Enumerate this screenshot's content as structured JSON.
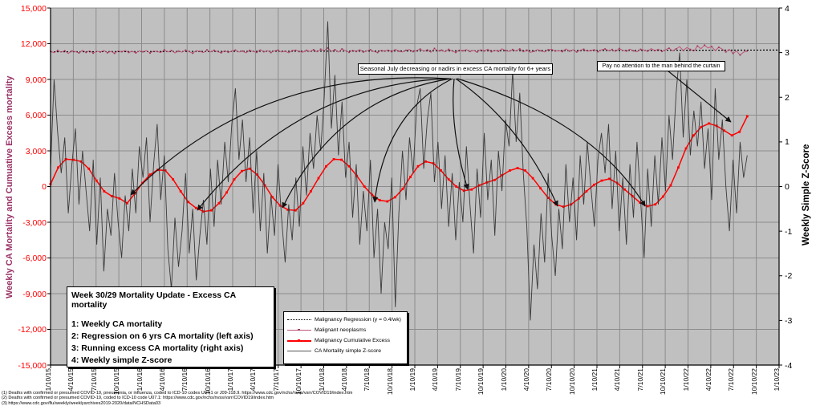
{
  "info_box": {
    "title": "Week 30/29 Mortality Update - Excess CA mortality",
    "lines": [
      "1: Weekly CA mortality",
      "2: Regression on 6 yrs CA mortality (left axis)",
      "3: Running excess CA mortality (right axis)",
      "4: Weekly simple Z-score"
    ]
  },
  "legend": {
    "items": [
      {
        "label": "Malignancy Regression (y = 0.4/wk)",
        "marker": "dotted-black-line"
      },
      {
        "label": "Malignant neoplasms",
        "marker": "pink-line-dot"
      },
      {
        "label": "Malignancy Cumulative Excess",
        "marker": "red-line-square"
      },
      {
        "label": "CA Mortality simple Z-score",
        "marker": "thin-black-line"
      }
    ]
  },
  "annotations": {
    "seasonal": {
      "text": "Seasonal July decreasing or nadirs in excess CA mortality for 6+ years"
    },
    "curtain": {
      "text": "Pay no attention to the man behind the curtain"
    }
  },
  "footnotes": [
    "(1) Deaths with confirmed or presumed COVID-19, pneumonia, or influenza, coded to ICD-10 codes U07.1 or J09-J18.9.  https://www.cdc.gov/nchs/nvss/vsrr/COVID19/index.htm",
    "(2) Deaths with confirmed or presumed COVID-19, coded to ICD-10 code U07.1:  https://www.cdc.gov/nchs/nvss/vsrr/COVID19/index.htm",
    "(3) https://www.cdc.gov/flu/weekly/weeklyarchives2019-2020/data/NCHSData03"
  ],
  "colors": {
    "plot_bg": "#C0C0C0",
    "grid": "#8C8C8C",
    "left_tick_labels": "#FF0000",
    "left_axis_title": "#993366",
    "neoplasms_line": "#BE5677",
    "neoplasms_marker": "#9E3D60",
    "cumulative_line": "#FF0000",
    "zscore_line": "#3A3A3A",
    "regression_line": "#000000",
    "arrow": "#111111"
  },
  "chart_data": {
    "type": "line",
    "title": "",
    "x_tick_labels": [
      "1/10/15",
      "4/10/15",
      "7/10/15",
      "10/10/15",
      "1/10/16",
      "4/10/16",
      "7/10/16",
      "10/10/16",
      "1/10/17",
      "4/10/17",
      "7/10/17",
      "10/10/17",
      "1/10/18",
      "4/10/18",
      "7/10/18",
      "10/10/18",
      "1/10/19",
      "4/10/19",
      "7/10/19",
      "10/10/19",
      "1/10/20",
      "4/10/20",
      "7/10/20",
      "10/10/20",
      "1/10/21",
      "4/10/21",
      "7/10/21",
      "10/10/21",
      "1/10/22",
      "4/10/22",
      "7/10/22",
      "10/10/22",
      "1/10/23"
    ],
    "left_axis": {
      "title": "Weekly CA Mortality and Cumuative Excess mortality",
      "min": -15000,
      "max": 15000,
      "tick_step": 3000,
      "tick_labels": [
        "15,000",
        "12,000",
        "9,000",
        "6,000",
        "3,000",
        "0",
        "-3,000",
        "-6,000",
        "-9,000",
        "-12,000",
        "-15,000"
      ]
    },
    "right_axis": {
      "title": "Weekly Simple Z-Score",
      "min": -4,
      "max": 4,
      "tick_step": 1,
      "tick_labels": [
        "4",
        "3",
        "2",
        "1",
        "0",
        "-1",
        "-2",
        "-3",
        "-4"
      ]
    },
    "grid": true,
    "legend_position": "in-plot lower-center",
    "series": [
      {
        "name": "Malignancy Regression (y = 0.4/wk)",
        "axis": "left",
        "style": "dotted",
        "q_start": 0,
        "q_end": 32,
        "values": [
          11320,
          11470
        ]
      },
      {
        "name": "Malignant neoplasms",
        "axis": "left",
        "style": "line-markers",
        "q_start": 0,
        "q_end": 30.6,
        "base_start": 11320,
        "base_end": 11470,
        "deltas": [
          40,
          -80,
          120,
          -40,
          90,
          -140,
          60,
          10,
          -100,
          130,
          -60,
          80,
          -120,
          40,
          -30,
          110,
          -90,
          20,
          -140,
          70,
          -10,
          100,
          -70,
          30,
          -110,
          60,
          -20,
          90,
          -130,
          50,
          0,
          -90,
          140,
          -40,
          80,
          -120,
          30,
          -60,
          110,
          -20,
          -150,
          70,
          10,
          -100,
          130,
          -50,
          90,
          -30,
          -120,
          60,
          -80,
          40,
          100,
          -60,
          20,
          -130,
          80,
          -10,
          -90,
          140,
          -40,
          60,
          -110,
          30,
          90,
          -70,
          0,
          -140,
          50,
          110,
          -30,
          -90,
          70,
          -20,
          120,
          -60,
          160,
          40,
          260,
          -30,
          120,
          -80,
          180,
          20,
          -110,
          70,
          -40,
          130,
          -90,
          10,
          100,
          -50,
          -130,
          60,
          -10,
          90,
          -70,
          140,
          -20,
          -100,
          50,
          110,
          -60,
          30,
          150,
          -40,
          80,
          -120,
          200,
          -10,
          60,
          -90,
          120,
          -30,
          -140,
          70,
          0,
          100,
          -60,
          30,
          -110,
          90,
          -20,
          130,
          -80,
          40,
          -50,
          160,
          10,
          -70,
          90,
          -30,
          140,
          -100,
          40,
          -150,
          -60,
          80,
          -20,
          -120,
          60,
          110,
          -40,
          0,
          -90,
          130,
          -50,
          70,
          -130,
          20,
          100,
          -60,
          -10,
          80,
          -110,
          50,
          120,
          -20,
          70,
          -90,
          150,
          0,
          -60,
          100,
          -40,
          -130,
          80,
          20,
          -70,
          140,
          -30,
          90,
          -100,
          40,
          170,
          -50,
          110,
          300,
          -20,
          220,
          60,
          -80,
          350,
          120,
          420,
          180,
          300,
          -40,
          240,
          80,
          -160,
          60,
          -280,
          -80,
          -420,
          -180,
          -80
        ]
      },
      {
        "name": "Malignancy Cumulative Excess",
        "axis": "left",
        "style": "line-squares",
        "q_start": 0,
        "q_end": 30.6,
        "values": [
          200,
          1600,
          2300,
          2250,
          2100,
          1500,
          500,
          -400,
          -800,
          -1000,
          -1400,
          -600,
          300,
          1000,
          1400,
          1350,
          600,
          -400,
          -1300,
          -1800,
          -2100,
          -2000,
          -1400,
          -500,
          600,
          1300,
          1500,
          1000,
          100,
          -900,
          -1600,
          -1950,
          -2000,
          -1400,
          -400,
          700,
          1700,
          2300,
          2250,
          1700,
          900,
          0,
          -700,
          -1150,
          -1250,
          -900,
          -200,
          800,
          1700,
          2100,
          1950,
          1350,
          600,
          0,
          -350,
          -250,
          100,
          350,
          550,
          950,
          1350,
          1550,
          1350,
          700,
          -150,
          -950,
          -1500,
          -1700,
          -1500,
          -1000,
          -400,
          150,
          500,
          650,
          300,
          -250,
          -800,
          -1350,
          -1650,
          -1500,
          -850,
          100,
          1600,
          3200,
          4300,
          5000,
          5300,
          5100,
          4700,
          4300,
          4600,
          5900
        ]
      },
      {
        "name": "CA Mortality simple Z-score",
        "axis": "right",
        "style": "thin-line",
        "q_start": 0,
        "q_end": 30.6,
        "values": [
          0.4,
          2.4,
          1.2,
          0.3,
          1.1,
          -0.6,
          0.5,
          1.3,
          -0.4,
          0.8,
          -0.1,
          -1,
          0.6,
          -1.3,
          0.2,
          -1.9,
          -0.5,
          -1.1,
          0.3,
          -0.8,
          -1.6,
          -0.2,
          -1,
          0.4,
          -0.6,
          0.9,
          0.2,
          1.1,
          -0.8,
          0.5,
          1.4,
          -0.3,
          0.7,
          -1.4,
          -2.3,
          -0.7,
          -1.8,
          -1,
          0.3,
          -1.5,
          -0.5,
          -2.1,
          -1.1,
          -0.3,
          -1.3,
          0.4,
          -0.9,
          0.6,
          -0.4,
          1,
          0.1,
          1.4,
          2.2,
          0.6,
          1.5,
          0.1,
          1.1,
          -0.6,
          0.8,
          -1,
          0.3,
          -1.5,
          -0.2,
          -1.1,
          0.5,
          -0.7,
          -1.7,
          -0.4,
          -1.2,
          0.2,
          -0.9,
          0.9,
          -0.2,
          1.2,
          0.4,
          1.6,
          0.8,
          2,
          3.7,
          1.3,
          2.5,
          0.7,
          1.9,
          0.2,
          1,
          -0.7,
          0.5,
          -1.3,
          -0.1,
          -1,
          0.6,
          -1.6,
          -0.5,
          -2.4,
          -0.8,
          -1.4,
          0.2,
          -2.7,
          -0.6,
          0.8,
          -0.3,
          1.1,
          0.3,
          1.8,
          2.2,
          0.4,
          1.5,
          2.1,
          0.1,
          1,
          -0.5,
          0.7,
          -0.9,
          0.3,
          -1.2,
          0.1,
          -0.8,
          0.9,
          -0.4,
          -1.5,
          0.4,
          -0.7,
          1.2,
          -0.3,
          0.6,
          -1.1,
          0.8,
          -0.1,
          1.5,
          0.9,
          2.6,
          1,
          2.1,
          0.3,
          -0.9,
          -3,
          -1.3,
          -2.3,
          -0.6,
          -1.7,
          0.3,
          -1.1,
          -2,
          -0.5,
          -1.4,
          0.5,
          -0.8,
          0.2,
          -1.2,
          0.7,
          -0.4,
          1,
          0,
          -0.9,
          0.6,
          1.2,
          0.3,
          1.4,
          -0.5,
          0.8,
          -1,
          0.2,
          -1.3,
          0.5,
          -0.7,
          1,
          -0.3,
          -1.6,
          0.4,
          -0.9,
          0.7,
          -0.4,
          1.1,
          -0.1,
          1.6,
          0.6,
          2.1,
          3,
          1.1,
          2.4,
          0.7,
          1.7,
          0.9,
          1.9,
          0.4,
          1.3,
          -0.3,
          2.2,
          0.6,
          1.5,
          0,
          -1,
          0.6,
          -0.6,
          1,
          0.2,
          0.7
        ]
      }
    ],
    "annotation_arrows": [
      {
        "type": "arc",
        "from": [
          558,
          98
        ],
        "ctrl": [
          320,
          84
        ],
        "to": [
          163,
          243
        ]
      },
      {
        "type": "arc",
        "from": [
          560,
          98
        ],
        "ctrl": [
          370,
          105
        ],
        "to": [
          246,
          262
        ]
      },
      {
        "type": "arc",
        "from": [
          562,
          98
        ],
        "ctrl": [
          420,
          120
        ],
        "to": [
          352,
          259
        ]
      },
      {
        "type": "arc",
        "from": [
          564,
          98
        ],
        "ctrl": [
          480,
          140
        ],
        "to": [
          467,
          252
        ]
      },
      {
        "type": "arc",
        "from": [
          566,
          98
        ],
        "ctrl": [
          560,
          160
        ],
        "to": [
          583,
          236
        ]
      },
      {
        "type": "arc",
        "from": [
          568,
          98
        ],
        "ctrl": [
          650,
          155
        ],
        "to": [
          695,
          257
        ]
      },
      {
        "type": "arc",
        "from": [
          570,
          98
        ],
        "ctrl": [
          740,
          150
        ],
        "to": [
          804,
          257
        ]
      },
      {
        "type": "line",
        "from": [
          832,
          88
        ],
        "to": [
          911,
          152
        ]
      }
    ]
  }
}
